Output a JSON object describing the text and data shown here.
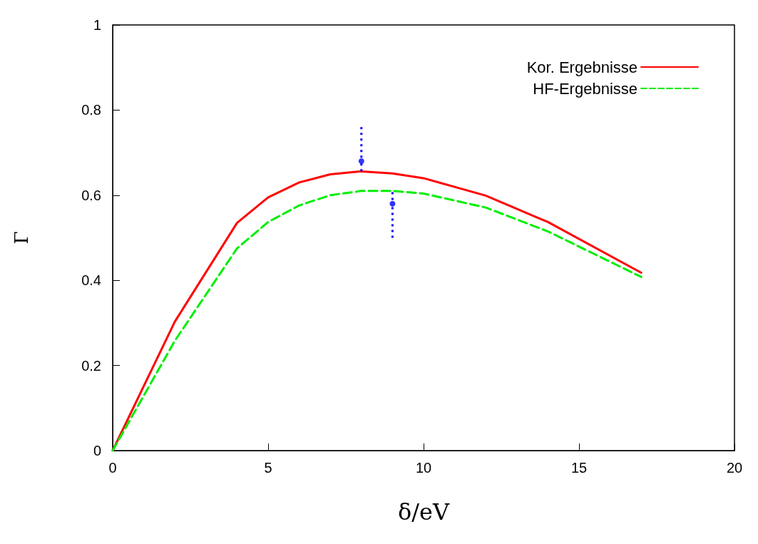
{
  "chart_data": {
    "type": "line",
    "xlabel": "δ/eV",
    "ylabel": "Γ",
    "xlim": [
      0,
      20
    ],
    "xticks": [
      0,
      5,
      10,
      15,
      20
    ],
    "ylim": [
      0,
      1
    ],
    "yticks": [
      0,
      0.2,
      0.4,
      0.6,
      0.8,
      1
    ],
    "grid": false,
    "legend": "top right",
    "marker": "none",
    "series": [
      {
        "name": "Kor. Ergebnisse",
        "color": "#ff0000",
        "line_style": "solid",
        "x": [
          0,
          2,
          4,
          5,
          6,
          7,
          8,
          9,
          10,
          12,
          14,
          17
        ],
        "values": [
          0,
          0.303,
          0.535,
          0.595,
          0.63,
          0.649,
          0.656,
          0.651,
          0.64,
          0.599,
          0.537,
          0.418
        ]
      },
      {
        "name": "HF-Ergebnisse",
        "color": "#00ee00",
        "line_style": "dashed",
        "x": [
          0,
          2,
          4,
          5,
          6,
          7,
          8,
          9,
          10,
          12,
          14,
          17
        ],
        "values": [
          0,
          0.258,
          0.475,
          0.537,
          0.576,
          0.6,
          0.61,
          0.61,
          0.604,
          0.571,
          0.515,
          0.408
        ]
      },
      {
        "type": "scatter",
        "color": "#0000ff",
        "marker": "circle",
        "line_style": "dotted",
        "x": [
          8,
          9
        ],
        "values": [
          0.68,
          0.58
        ],
        "errors": [
          [
            0.656,
            0.76
          ],
          [
            0.5,
            0.607
          ]
        ]
      }
    ]
  }
}
